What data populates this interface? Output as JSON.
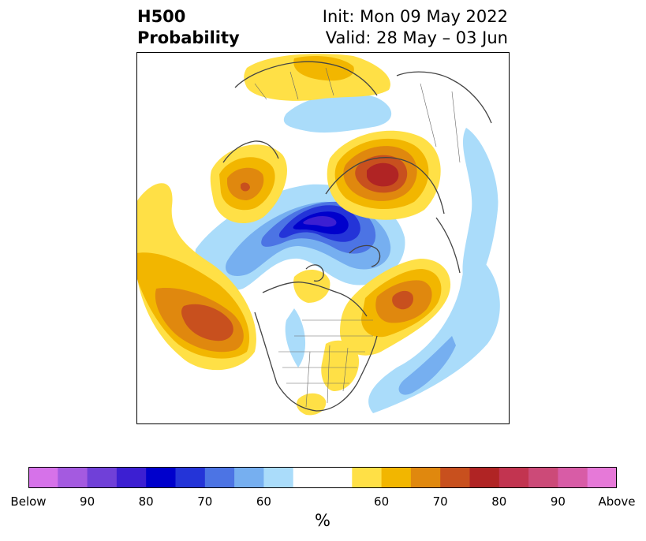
{
  "title": {
    "line1_left": "H500",
    "line2_left": "Probability",
    "line1_right": "Init: Mon 09 May 2022",
    "line2_right": "Valid: 28 May – 03 Jun"
  },
  "colorbar": {
    "unit": "%",
    "below_colors": [
      "#d672e9",
      "#a45ae0",
      "#7040d8",
      "#3c1fd2",
      "#0000cc",
      "#2434d8",
      "#4c74e4",
      "#76aff0",
      "#aadcfa"
    ],
    "neutral_color": "#ffffff",
    "above_colors": [
      "#ffe046",
      "#f2b600",
      "#e0880e",
      "#c8501e",
      "#b02424",
      "#c23450",
      "#cc4a78",
      "#d85ca6",
      "#e679d8"
    ],
    "tick_labels": [
      "Below",
      "90",
      "80",
      "70",
      "60",
      "60",
      "70",
      "80",
      "90",
      "Above"
    ]
  },
  "map": {
    "projection": "north polar stereographic",
    "field": "500 hPa height anomaly probability"
  }
}
